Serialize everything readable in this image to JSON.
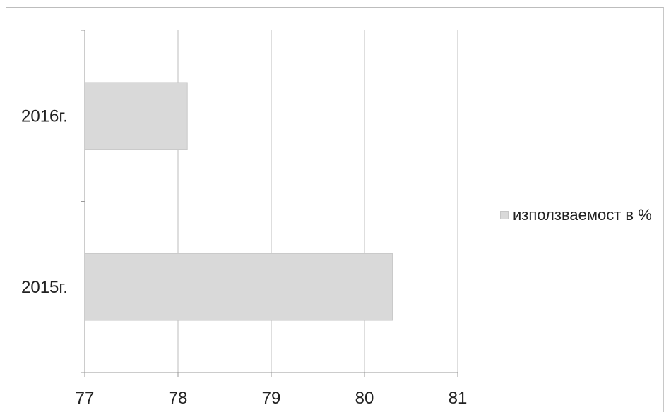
{
  "chart_data": {
    "type": "bar",
    "orientation": "horizontal",
    "categories": [
      "2016г.",
      "2015г."
    ],
    "series": [
      {
        "name": "използваемост в %",
        "values": [
          78.1,
          80.3
        ]
      }
    ],
    "xlim": [
      77,
      81
    ],
    "xticks": [
      "77",
      "78",
      "79",
      "80",
      "81"
    ],
    "grid": true,
    "legend_position": "right",
    "colors": {
      "bar": "#d9d9d9",
      "bar_stroke": "#c9c9c9",
      "grid": "#bdbdbd",
      "axis": "#9a9a9a"
    }
  }
}
